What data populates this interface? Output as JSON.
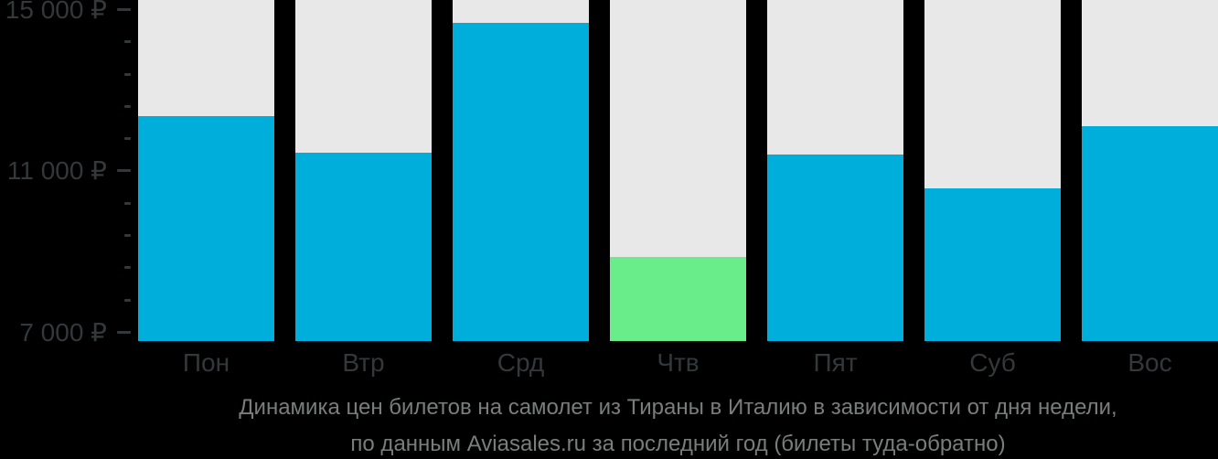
{
  "chart_data": {
    "type": "bar",
    "title": "Динамика цен билетов на самолет из Тираны в Италию в зависимости от дня недели, по данным Aviasales.ru за последний год (билеты туда-обратно)",
    "title_lines": [
      "Динамика цен билетов на самолет из Тираны в Италию в зависимости от дня недели,",
      "по данным Aviasales.ru за последний год (билеты туда-обратно)"
    ],
    "categories": [
      "Пон",
      "Втр",
      "Срд",
      "Чтв",
      "Пят",
      "Суб",
      "Вос"
    ],
    "values": [
      12350,
      11450,
      14650,
      8850,
      11400,
      10550,
      12100
    ],
    "currency": "₽",
    "highlight_index": 3,
    "y_axis": {
      "major_ticks": [
        {
          "value": 15000,
          "label": "15 000 ₽"
        },
        {
          "value": 11000,
          "label": "11 000 ₽"
        },
        {
          "value": 7000,
          "label": "7 000 ₽"
        }
      ],
      "minor_tick_values": [
        14200,
        13400,
        12600,
        11800,
        10200,
        9400,
        8600,
        7800
      ],
      "range_shown": [
        6775,
        15230
      ]
    },
    "legend": null,
    "grid": false,
    "colors": {
      "bar": "#00AEDB",
      "bar_highlight": "#69ED8A",
      "column_background": "#E8E8E8",
      "page_background": "#000000",
      "axis_text": "#33383B",
      "title_text": "#787E7B"
    }
  }
}
